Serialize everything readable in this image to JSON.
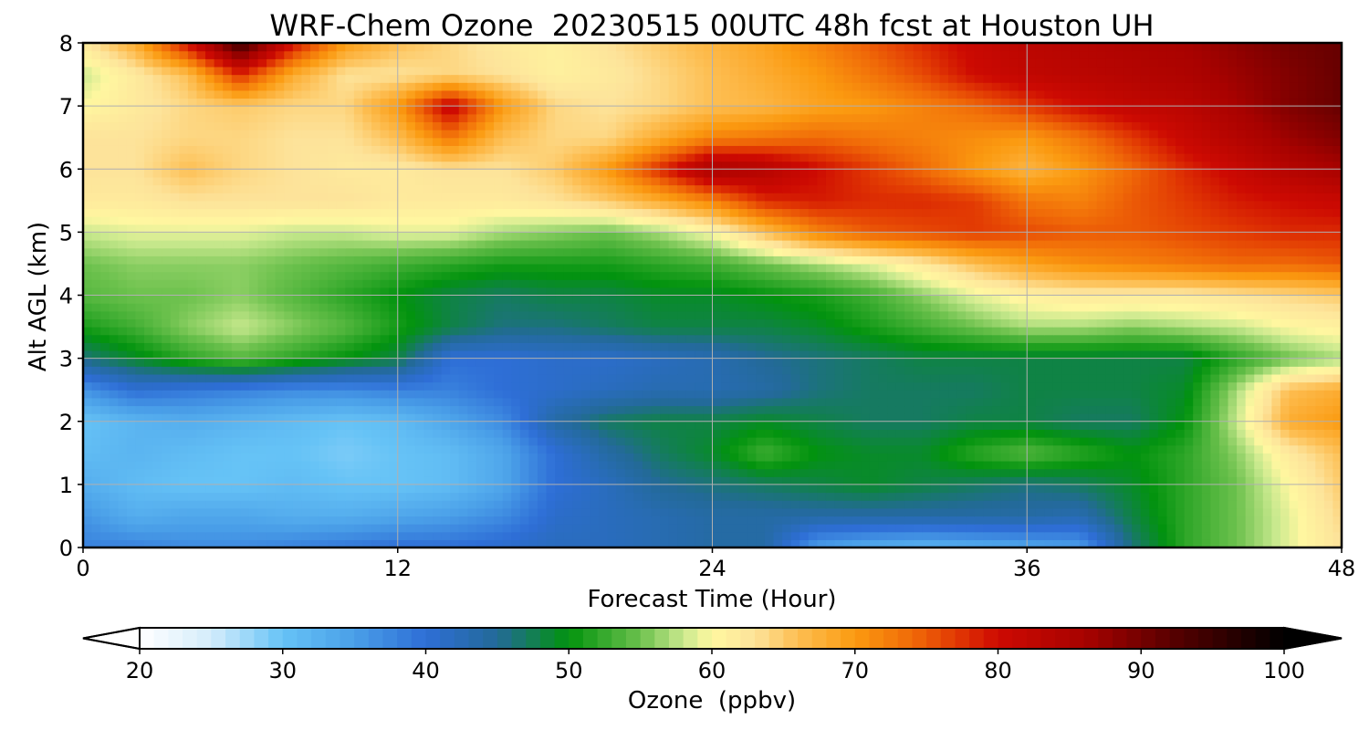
{
  "chart_data": {
    "type": "heatmap",
    "title": "WRF-Chem Ozone  20230515 00UTC 48h fcst at Houston UH",
    "xlabel": "Forecast Time (Hour)",
    "ylabel": "Alt AGL (km)",
    "xlim": [
      0,
      48
    ],
    "ylim": [
      0,
      8
    ],
    "xticks": [
      0,
      12,
      24,
      36,
      48
    ],
    "yticks": [
      0,
      1,
      2,
      3,
      4,
      5,
      6,
      7,
      8
    ],
    "grid": true,
    "x": [
      0,
      2,
      4,
      6,
      8,
      10,
      12,
      14,
      16,
      18,
      20,
      22,
      24,
      26,
      28,
      30,
      32,
      34,
      36,
      38,
      40,
      42,
      44,
      46,
      48
    ],
    "y": [
      0,
      0.5,
      1,
      1.5,
      2,
      2.5,
      3,
      3.5,
      4,
      4.5,
      5,
      5.5,
      6,
      6.5,
      7,
      7.5,
      8
    ],
    "z": [
      [
        38,
        38,
        37,
        37,
        38,
        39,
        40,
        40,
        41,
        42,
        42,
        43,
        44,
        44,
        35,
        33,
        32,
        33,
        34,
        35,
        46,
        52,
        55,
        59,
        63
      ],
      [
        36,
        33,
        34,
        34,
        33,
        33,
        34,
        35,
        37,
        41,
        42,
        43,
        44,
        44,
        44,
        44,
        44,
        44,
        44,
        43,
        48,
        52,
        55,
        59,
        64
      ],
      [
        33,
        31,
        30,
        30,
        31,
        30,
        30,
        31,
        34,
        40,
        42,
        45,
        46,
        47,
        48,
        49,
        48,
        47,
        46,
        47,
        49,
        52,
        55,
        60,
        65
      ],
      [
        31,
        32,
        31,
        30,
        30,
        29,
        30,
        31,
        34,
        40,
        44,
        47,
        49,
        53,
        50,
        49,
        49,
        52,
        54,
        52,
        50,
        52,
        56,
        62,
        66
      ],
      [
        30,
        32,
        33,
        32,
        31,
        30,
        31,
        34,
        37,
        44,
        47,
        48,
        48,
        49,
        48,
        47,
        47,
        48,
        48,
        47,
        47,
        50,
        58,
        68,
        70
      ],
      [
        36,
        40,
        39,
        38,
        37,
        37,
        38,
        38,
        40,
        41,
        42,
        43,
        43,
        44,
        46,
        47,
        47,
        47,
        48,
        48,
        48,
        49,
        57,
        66,
        68
      ],
      [
        46,
        49,
        52,
        54,
        52,
        50,
        48,
        40,
        40,
        41,
        41,
        42,
        43,
        45,
        46,
        47,
        48,
        48,
        48,
        48,
        48,
        48,
        52,
        55,
        57
      ],
      [
        51,
        53,
        56,
        58,
        56,
        54,
        51,
        48,
        46,
        46,
        47,
        48,
        48,
        48,
        49,
        51,
        53,
        55,
        57,
        57,
        56,
        57,
        58,
        60,
        61
      ],
      [
        54,
        55,
        55,
        56,
        54,
        52,
        50,
        48,
        47,
        48,
        48,
        49,
        49,
        50,
        51,
        53,
        56,
        59,
        61,
        62,
        62,
        62,
        63,
        64,
        65
      ],
      [
        55,
        56,
        56,
        56,
        55,
        54,
        53,
        52,
        51,
        51,
        51,
        52,
        53,
        55,
        57,
        59,
        62,
        66,
        69,
        71,
        72,
        73,
        74,
        74,
        75
      ],
      [
        58,
        59,
        59,
        59,
        58,
        58,
        59,
        59,
        57,
        56,
        55,
        57,
        60,
        66,
        72,
        75,
        76,
        77,
        76,
        75,
        75,
        76,
        77,
        78,
        78
      ],
      [
        62,
        62,
        63,
        63,
        63,
        63,
        62,
        62,
        62,
        63,
        65,
        68,
        72,
        78,
        79,
        78,
        78,
        77,
        73,
        72,
        75,
        77,
        79,
        80,
        81
      ],
      [
        63,
        63,
        66,
        64,
        63,
        62,
        62,
        63,
        63,
        65,
        70,
        78,
        86,
        84,
        80,
        77,
        74,
        70,
        67,
        70,
        74,
        78,
        81,
        84,
        86
      ],
      [
        63,
        63,
        64,
        64,
        63,
        63,
        66,
        73,
        66,
        64,
        64,
        68,
        72,
        73,
        74,
        73,
        72,
        71,
        70,
        73,
        77,
        81,
        84,
        87,
        89
      ],
      [
        60,
        62,
        64,
        65,
        64,
        64,
        70,
        82,
        70,
        64,
        63,
        64,
        66,
        67,
        69,
        70,
        72,
        74,
        77,
        80,
        82,
        83,
        86,
        89,
        91
      ],
      [
        58,
        62,
        66,
        78,
        68,
        63,
        63,
        64,
        63,
        61,
        62,
        64,
        66,
        68,
        70,
        73,
        76,
        80,
        82,
        83,
        84,
        85,
        87,
        89,
        91
      ],
      [
        62,
        68,
        80,
        95,
        80,
        70,
        66,
        64,
        62,
        61,
        63,
        65,
        67,
        69,
        72,
        75,
        78,
        81,
        83,
        84,
        85,
        86,
        88,
        90,
        91
      ]
    ],
    "colorbar": {
      "label": "Ozone  (ppbv)",
      "min": 20,
      "max": 100,
      "ticks": [
        20,
        30,
        40,
        50,
        60,
        70,
        80,
        90,
        100
      ],
      "extend": "both"
    },
    "colormap": [
      [
        "#ffffff",
        20
      ],
      [
        "#d4ecfb",
        25
      ],
      [
        "#66c3f6",
        30
      ],
      [
        "#4a9fe8",
        35
      ],
      [
        "#2e6ed6",
        40
      ],
      [
        "#236a98",
        45
      ],
      [
        "#02930e",
        50
      ],
      [
        "#6cc14d",
        55
      ],
      [
        "#c9e98e",
        58
      ],
      [
        "#fff7a0",
        60
      ],
      [
        "#fde39a",
        63
      ],
      [
        "#fdbe52",
        66
      ],
      [
        "#fb9a10",
        70
      ],
      [
        "#f06a08",
        74
      ],
      [
        "#e23a03",
        77
      ],
      [
        "#cd0a02",
        80
      ],
      [
        "#a80200",
        86
      ],
      [
        "#5a0000",
        92
      ],
      [
        "#000000",
        100
      ]
    ]
  }
}
